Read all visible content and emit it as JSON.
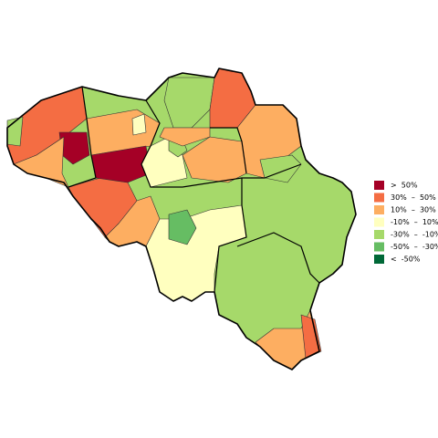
{
  "legend": {
    "items": [
      {
        "label": ">  50%",
        "color": "#a50026"
      },
      {
        "label": "30%  –  50%",
        "color": "#f46d43"
      },
      {
        "label": "10%  –  30%",
        "color": "#fdae61"
      },
      {
        "label": "-10%  –  10%",
        "color": "#ffffbf"
      },
      {
        "label": "-30%  –  -10%",
        "color": "#a6d96a"
      },
      {
        "label": "-50%  –  -30%",
        "color": "#66bd63"
      },
      {
        "label": "<  -50%",
        "color": "#006837"
      }
    ]
  }
}
